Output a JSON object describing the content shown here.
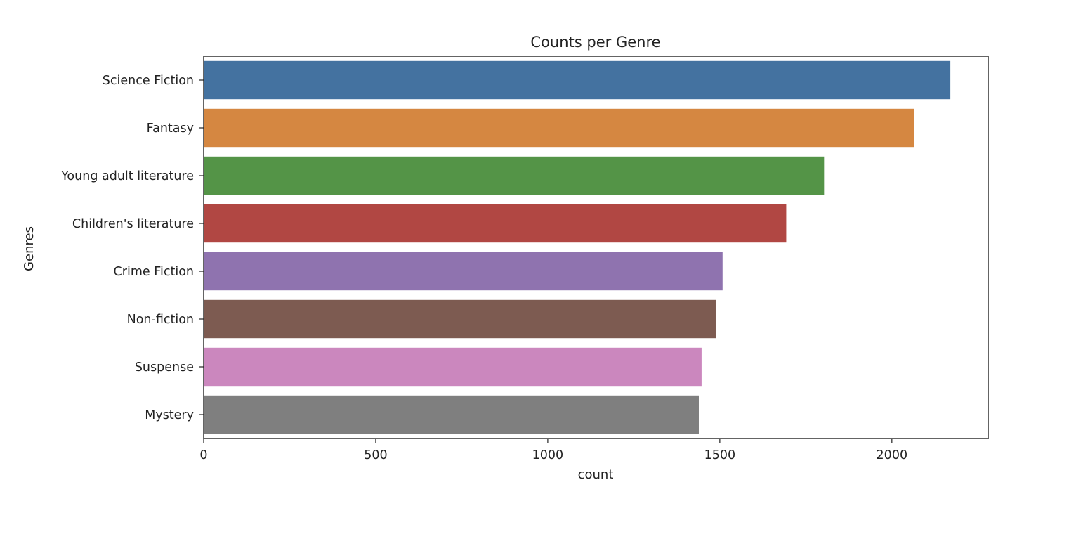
{
  "chart_data": {
    "type": "bar",
    "orientation": "horizontal",
    "title": "Counts per Genre",
    "xlabel": "count",
    "ylabel": "Genres",
    "categories": [
      "Science Fiction",
      "Fantasy",
      "Young adult literature",
      "Children's literature",
      "Crime Fiction",
      "Non-fiction",
      "Suspense",
      "Mystery"
    ],
    "values": [
      2170,
      2064,
      1803,
      1693,
      1508,
      1488,
      1447,
      1439
    ],
    "colors": [
      "#4472a0",
      "#d58741",
      "#549447",
      "#b14743",
      "#8f73af",
      "#7d5b51",
      "#cb87be",
      "#7f7f7f"
    ],
    "xlim": [
      0,
      2280
    ],
    "xticks": [
      0,
      500,
      1000,
      1500,
      2000
    ],
    "xtick_labels": [
      "0",
      "500",
      "1000",
      "1500",
      "2000"
    ],
    "grid": false,
    "legend": "none"
  }
}
